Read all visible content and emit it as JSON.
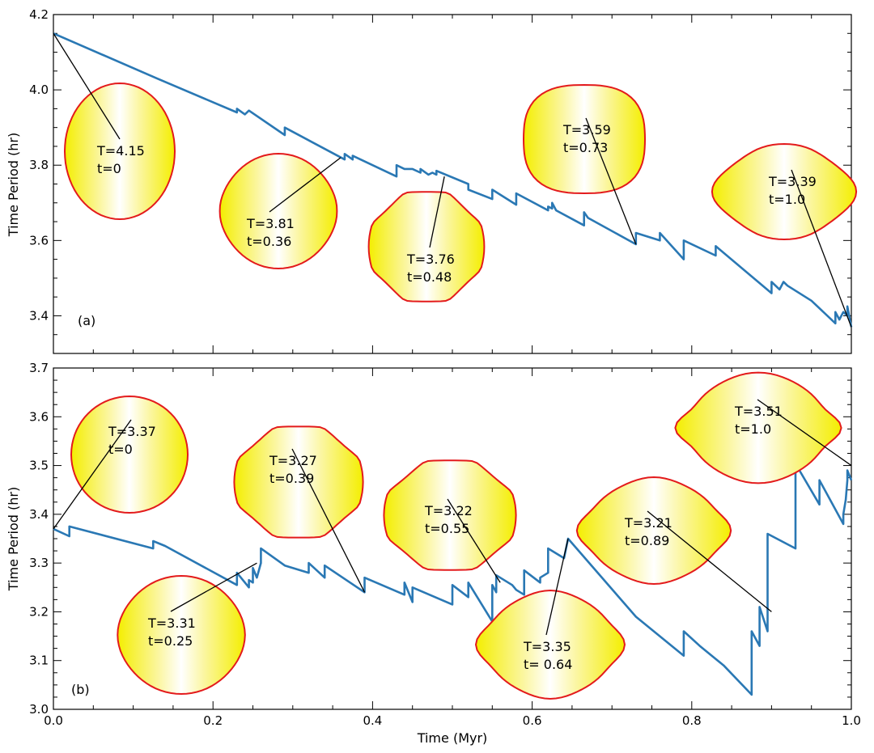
{
  "chart_data": [
    {
      "type": "line",
      "panel_label": "(a)",
      "xlabel": "",
      "ylabel": "Time Period (hr)",
      "xlim": [
        0,
        1.0
      ],
      "ylim": [
        3.3,
        4.2
      ],
      "yticks": [
        3.4,
        3.6,
        3.8,
        4.0,
        4.2
      ],
      "ytick_labels": [
        "3.4",
        "3.6",
        "3.8",
        "4.0",
        "4.2"
      ],
      "series": [
        {
          "name": "period",
          "color": "#2a78b4",
          "x": [
            0.0,
            0.13,
            0.23,
            0.23,
            0.24,
            0.245,
            0.29,
            0.29,
            0.365,
            0.365,
            0.375,
            0.375,
            0.43,
            0.43,
            0.44,
            0.45,
            0.46,
            0.46,
            0.47,
            0.475,
            0.48,
            0.48,
            0.52,
            0.52,
            0.55,
            0.55,
            0.58,
            0.58,
            0.62,
            0.62,
            0.625,
            0.625,
            0.63,
            0.665,
            0.665,
            0.67,
            0.73,
            0.73,
            0.76,
            0.76,
            0.79,
            0.79,
            0.83,
            0.83,
            0.9,
            0.9,
            0.91,
            0.915,
            0.92,
            0.95,
            0.98,
            0.98,
            0.985,
            0.99,
            0.995,
            0.995,
            1.0
          ],
          "y": [
            4.15,
            4.03,
            3.94,
            3.95,
            3.935,
            3.945,
            3.88,
            3.9,
            3.815,
            3.83,
            3.815,
            3.825,
            3.77,
            3.8,
            3.79,
            3.79,
            3.78,
            3.79,
            3.775,
            3.78,
            3.775,
            3.785,
            3.75,
            3.735,
            3.71,
            3.735,
            3.695,
            3.725,
            3.68,
            3.69,
            3.685,
            3.7,
            3.68,
            3.64,
            3.675,
            3.66,
            3.59,
            3.62,
            3.6,
            3.62,
            3.55,
            3.6,
            3.56,
            3.585,
            3.46,
            3.49,
            3.47,
            3.49,
            3.48,
            3.44,
            3.38,
            3.41,
            3.39,
            3.41,
            3.4,
            3.425,
            3.37
          ]
        }
      ],
      "annotations": [
        {
          "line1": "T=4.15",
          "line2": "t=0",
          "x": 0.0,
          "y": 4.15,
          "shape": "circle"
        },
        {
          "line1": "T=3.81",
          "line2": "t=0.36",
          "x": 0.36,
          "y": 3.82,
          "shape": "slight-bulge"
        },
        {
          "line1": "T=3.76",
          "line2": "t=0.48",
          "x": 0.49,
          "y": 3.77,
          "shape": "bulge"
        },
        {
          "line1": "T=3.59",
          "line2": "t=0.73",
          "x": 0.73,
          "y": 3.59,
          "shape": "square-ish"
        },
        {
          "line1": "T=3.39",
          "line2": "t=1.0",
          "x": 1.0,
          "y": 3.37,
          "shape": "diamond"
        }
      ]
    },
    {
      "type": "line",
      "panel_label": "(b)",
      "xlabel": "Time (Myr)",
      "ylabel": "Time Period (hr)",
      "xlim": [
        0,
        1.0
      ],
      "ylim": [
        3.0,
        3.7
      ],
      "xticks": [
        0.0,
        0.2,
        0.4,
        0.6,
        0.8,
        1.0
      ],
      "xtick_labels": [
        "0.0",
        "0.2",
        "0.4",
        "0.6",
        "0.8",
        "1.0"
      ],
      "yticks": [
        3.0,
        3.1,
        3.2,
        3.3,
        3.4,
        3.5,
        3.6,
        3.7
      ],
      "ytick_labels": [
        "3.0",
        "3.1",
        "3.2",
        "3.3",
        "3.4",
        "3.5",
        "3.6",
        "3.7"
      ],
      "series": [
        {
          "name": "period",
          "color": "#2a78b4",
          "x": [
            0.0,
            0.02,
            0.02,
            0.125,
            0.125,
            0.14,
            0.23,
            0.23,
            0.245,
            0.245,
            0.25,
            0.25,
            0.255,
            0.26,
            0.26,
            0.29,
            0.32,
            0.32,
            0.34,
            0.34,
            0.39,
            0.39,
            0.44,
            0.44,
            0.45,
            0.45,
            0.5,
            0.5,
            0.52,
            0.52,
            0.55,
            0.55,
            0.555,
            0.555,
            0.575,
            0.58,
            0.59,
            0.59,
            0.61,
            0.61,
            0.62,
            0.62,
            0.64,
            0.645,
            0.73,
            0.79,
            0.79,
            0.81,
            0.84,
            0.875,
            0.875,
            0.885,
            0.885,
            0.895,
            0.895,
            0.93,
            0.93,
            0.935,
            0.96,
            0.96,
            0.99,
            0.99,
            0.993,
            0.995,
            0.995,
            1.0
          ],
          "y": [
            3.37,
            3.355,
            3.375,
            3.33,
            3.345,
            3.335,
            3.255,
            3.28,
            3.25,
            3.265,
            3.26,
            3.29,
            3.27,
            3.3,
            3.33,
            3.295,
            3.28,
            3.3,
            3.27,
            3.295,
            3.24,
            3.27,
            3.235,
            3.26,
            3.22,
            3.25,
            3.215,
            3.255,
            3.23,
            3.26,
            3.18,
            3.255,
            3.24,
            3.275,
            3.255,
            3.245,
            3.235,
            3.285,
            3.26,
            3.27,
            3.28,
            3.33,
            3.31,
            3.35,
            3.19,
            3.11,
            3.16,
            3.13,
            3.09,
            3.03,
            3.16,
            3.13,
            3.21,
            3.16,
            3.36,
            3.33,
            3.49,
            3.49,
            3.42,
            3.47,
            3.38,
            3.4,
            3.43,
            3.47,
            3.49,
            3.47
          ]
        }
      ],
      "annotations": [
        {
          "line1": "T=3.37",
          "line2": "t=0",
          "x": 0.0,
          "y": 3.37,
          "shape": "circle"
        },
        {
          "line1": "T=3.31",
          "line2": "t=0.25",
          "x": 0.255,
          "y": 3.3,
          "shape": "slight-bulge"
        },
        {
          "line1": "T=3.27",
          "line2": "t=0.39",
          "x": 0.39,
          "y": 3.24,
          "shape": "bulge"
        },
        {
          "line1": "T=3.22",
          "line2": "t=0.55",
          "x": 0.56,
          "y": 3.26,
          "shape": "bulge"
        },
        {
          "line1": "T=3.35",
          "line2": "t= 0.64",
          "x": 0.645,
          "y": 3.35,
          "shape": "flared"
        },
        {
          "line1": "T=3.21",
          "line2": "t=0.89",
          "x": 0.9,
          "y": 3.2,
          "shape": "flared"
        },
        {
          "line1": "T=3.51",
          "line2": "t=1.0",
          "x": 1.0,
          "y": 3.5,
          "shape": "winged"
        }
      ]
    }
  ]
}
